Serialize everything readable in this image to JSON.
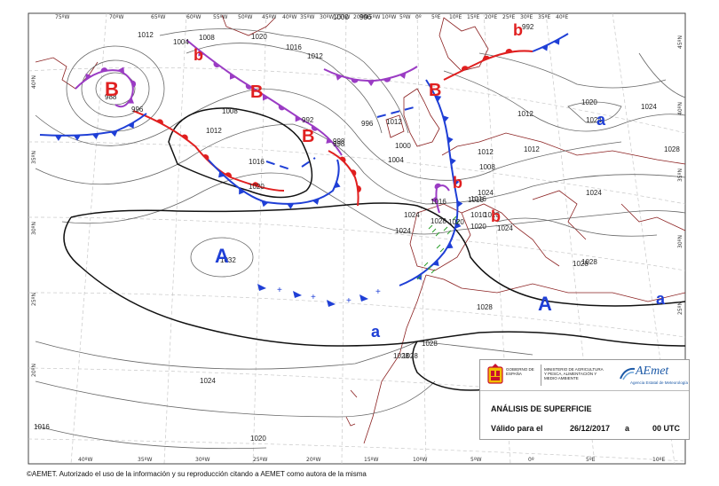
{
  "colors": {
    "isobar": "#666666",
    "isobar_bold": "#111111",
    "coast": "#8b2020",
    "cold_front": "#1f3fd6",
    "warm_front": "#e01f1f",
    "occluded_front": "#9b3cc4",
    "low_label": "#e01f1f",
    "high_label": "#1f3fd6",
    "aemet_blue": "#1d5aa7",
    "crest_red": "#c8102e",
    "crest_yellow": "#f1bf00"
  },
  "map": {
    "lon_labels": [
      "75ºW",
      "70ºW",
      "65ºW",
      "60ºW",
      "55ºW",
      "50ºW",
      "45ºW",
      "40ºW",
      "35ºW",
      "30ºW",
      "25ºW",
      "20ºW",
      "15ºW",
      "10ºW",
      "5ºW",
      "0º",
      "5ºE",
      "10ºE",
      "15ºE",
      "20ºE",
      "25ºE",
      "30ºE",
      "35ºE",
      "40ºE"
    ],
    "bottom_lon_labels": [
      "40ºW",
      "35ºW",
      "30ºW",
      "25ºW",
      "20ºW",
      "15ºW",
      "10ºW",
      "5ºW",
      "0º",
      "5ºE",
      "10ºE"
    ],
    "left_lat_labels": [
      "40ºN",
      "35ºN",
      "30ºN",
      "25ºN",
      "20ºN"
    ],
    "right_lat_labels": [
      "45ºN",
      "40ºN",
      "35ºN",
      "30ºN",
      "25ºN",
      "20ºN"
    ],
    "isobar_labels": [
      "1012",
      "1004",
      "1008",
      "1020",
      "1016",
      "1012",
      "1000",
      "996",
      "1008",
      "992",
      "998",
      "996",
      "1012",
      "1016",
      "1020",
      "1024",
      "1032",
      "1024",
      "1016",
      "1020",
      "1024",
      "1028",
      "1028",
      "1028",
      "1028",
      "1028",
      "1024",
      "1020",
      "1016",
      "1000",
      "1004",
      "1008",
      "1012",
      "1020",
      "1024",
      "1016",
      "1010",
      "1020",
      "992",
      "988",
      "996",
      "998",
      "1012",
      "1012",
      "1012",
      "1024",
      "1028",
      "1020",
      "1024",
      "1024",
      "1028",
      "1028",
      "1016"
    ],
    "systems": [
      {
        "label": "B",
        "kind": "low"
      },
      {
        "label": "b",
        "kind": "low"
      },
      {
        "label": "B",
        "kind": "low"
      },
      {
        "label": "B",
        "kind": "low"
      },
      {
        "label": "B",
        "kind": "low"
      },
      {
        "label": "b",
        "kind": "low"
      },
      {
        "label": "b",
        "kind": "low"
      },
      {
        "label": "b",
        "kind": "low"
      },
      {
        "label": "A",
        "kind": "high"
      },
      {
        "label": "a",
        "kind": "high"
      },
      {
        "label": "A",
        "kind": "high"
      },
      {
        "label": "a",
        "kind": "high"
      },
      {
        "label": "a",
        "kind": "high"
      }
    ]
  },
  "infobox": {
    "gov_text": "GOBIERNO DE ESPAÑA",
    "ministry_text": "MINISTERIO DE AGRICULTURA Y PESCA, ALIMENTACIÓN Y MEDIO AMBIENTE",
    "agency_logo": "AEmet",
    "agency_name": "Agencia Estatal de Meteorología",
    "title": "ANÁLISIS DE SUPERFICIE",
    "valid_label": "Válido para el",
    "valid_date": "26/12/2017",
    "valid_sep": "a",
    "valid_time": "00 UTC"
  },
  "footer": "©AEMET. Autorizado el uso de la información y su reproducción citando a AEMET como autora de la misma"
}
